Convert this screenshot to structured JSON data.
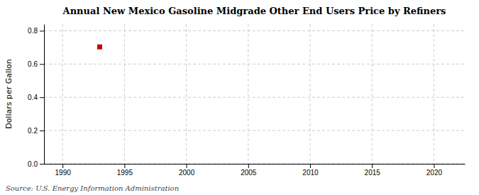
{
  "chart_data": {
    "type": "scatter",
    "title": "Annual New Mexico Gasoline Midgrade Other End Users Price by Refiners",
    "ylabel": "Dollars per Gallon",
    "source": "Source: U.S. Energy Information Administration",
    "x": [
      1993
    ],
    "values": [
      0.703
    ],
    "color": "#cc0000",
    "marker": "square",
    "xlim": [
      1988.5,
      2022.5
    ],
    "ylim": [
      0.0,
      0.84
    ],
    "xticks": [
      1990,
      1995,
      2000,
      2005,
      2010,
      2015,
      2020
    ],
    "yticks": [
      {
        "value": 0.0,
        "label": "0.0"
      },
      0.2,
      0.4,
      0.6,
      0.8
    ],
    "grid": true
  }
}
